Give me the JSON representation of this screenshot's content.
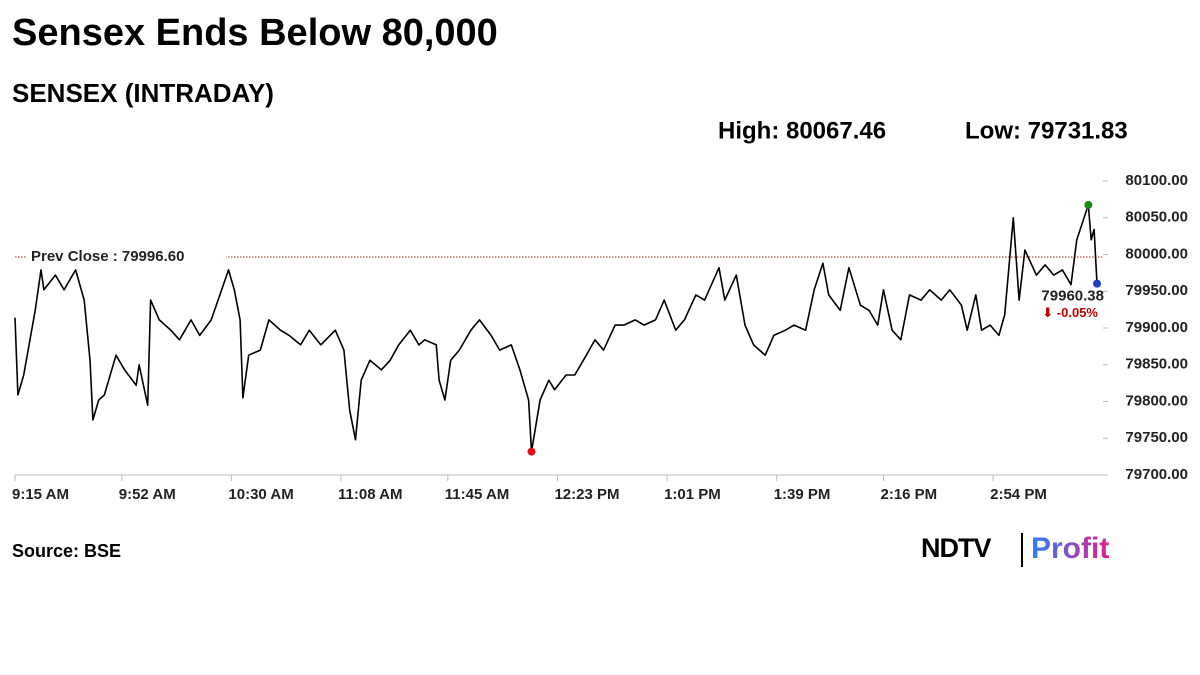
{
  "chart_data": {
    "type": "line",
    "title": "Sensex Ends Below 80,000",
    "subtitle": "SENSEX (INTRADAY)",
    "high": {
      "value": 80067.46,
      "label": "High: 80067.46",
      "color": "#1a8a1a"
    },
    "low": {
      "value": 79731.83,
      "label": "Low: 79731.83",
      "color": "#e01010"
    },
    "prev_close": {
      "value": 79996.6,
      "label": "Prev Close : 79996.60",
      "color": "#b22222"
    },
    "last": {
      "value": 79960.38,
      "color": "#1f3fbf"
    },
    "change": {
      "value": -0.05,
      "label": "⬇ -0.05%",
      "color": "#c00000"
    },
    "source": "Source: BSE",
    "logo": [
      "NDTV",
      "Profit"
    ],
    "color": "#000000",
    "x": [
      "9:15 AM",
      "9:16 AM",
      "9:18 AM",
      "9:22 AM",
      "9:24 AM",
      "9:25 AM",
      "9:29 AM",
      "9:32 AM",
      "9:36 AM",
      "9:39 AM",
      "9:41 AM",
      "9:42 AM",
      "9:44 AM",
      "9:46 AM",
      "9:50 AM",
      "9:53 AM",
      "9:57 AM",
      "9:58 AM",
      "10:01 AM",
      "10:02 AM",
      "10:05 AM",
      "10:09 AM",
      "10:12 AM",
      "10:16 AM",
      "10:19 AM",
      "10:23 AM",
      "10:26 AM",
      "10:29 AM",
      "10:31 AM",
      "10:33 AM",
      "10:34 AM",
      "10:36 AM",
      "10:40 AM",
      "10:43 AM",
      "10:47 AM",
      "10:50 AM",
      "10:54 AM",
      "10:57 AM",
      "11:01 AM",
      "11:06 AM",
      "11:09 AM",
      "11:11 AM",
      "11:13 AM",
      "11:15 AM",
      "11:18 AM",
      "11:22 AM",
      "11:25 AM",
      "11:28 AM",
      "11:32 AM",
      "11:35 AM",
      "11:37 AM",
      "11:41 AM",
      "11:42 AM",
      "11:44 AM",
      "11:46 AM",
      "11:49 AM",
      "11:53 AM",
      "11:56 AM",
      "12:00 PM",
      "12:03 PM",
      "12:07 PM",
      "12:10 PM",
      "12:13 PM",
      "12:14 PM",
      "12:17 PM",
      "12:20 PM",
      "12:22 PM",
      "12:26 PM",
      "12:29 PM",
      "12:33 PM",
      "12:36 PM",
      "12:39 PM",
      "12:43 PM",
      "12:46 PM",
      "12:50 PM",
      "12:53 PM",
      "12:57 PM",
      "1:00 PM",
      "1:04 PM",
      "1:07 PM",
      "1:11 PM",
      "1:14 PM",
      "1:19 PM",
      "1:21 PM",
      "1:25 PM",
      "1:28 PM",
      "1:31 PM",
      "1:35 PM",
      "1:38 PM",
      "1:42 PM",
      "1:45 PM",
      "1:49 PM",
      "1:52 PM",
      "1:55 PM",
      "1:57 PM",
      "2:01 PM",
      "2:04 PM",
      "2:08 PM",
      "2:11 PM",
      "2:14 PM",
      "2:16 PM",
      "2:19 PM",
      "2:22 PM",
      "2:25 PM",
      "2:29 PM",
      "2:32 PM",
      "2:36 PM",
      "2:39 PM",
      "2:43 PM",
      "2:45 PM",
      "2:48 PM",
      "2:50 PM",
      "2:53 PM",
      "2:56 PM",
      "2:58 PM",
      "3:01 PM",
      "3:03 PM",
      "3:05 PM",
      "3:09 PM",
      "3:12 PM",
      "3:15 PM",
      "3:18 PM",
      "3:21 PM",
      "3:23 PM",
      "3:27 PM",
      "3:28 PM",
      "3:29 PM",
      "3:30 PM"
    ],
    "values": [
      79914,
      79809,
      79836,
      79924,
      79979,
      79952,
      79972,
      79952,
      79979,
      79938,
      79856,
      79775,
      79802,
      79809,
      79863,
      79843,
      79822,
      79850,
      79795,
      79938,
      79911,
      79897,
      79884,
      79911,
      79890,
      79911,
      79945,
      79979,
      79952,
      79911,
      79805,
      79863,
      79870,
      79911,
      79897,
      79890,
      79877,
      79897,
      79877,
      79897,
      79870,
      79788,
      79748,
      79829,
      79856,
      79843,
      79856,
      79877,
      79897,
      79877,
      79884,
      79877,
      79829,
      79802,
      79856,
      79870,
      79897,
      79911,
      79890,
      79870,
      79877,
      79843,
      79802,
      79731.83,
      79802,
      79829,
      79816,
      79836,
      79836,
      79863,
      79884,
      79870,
      79904,
      79904,
      79911,
      79904,
      79911,
      79938,
      79897,
      79911,
      79945,
      79938,
      79982,
      79938,
      79972,
      79904,
      79877,
      79863,
      79890,
      79897,
      79904,
      79897,
      79952,
      79988,
      79945,
      79924,
      79982,
      79931,
      79924,
      79904,
      79952,
      79897,
      79884,
      79945,
      79938,
      79952,
      79938,
      79952,
      79931,
      79897,
      79945,
      79897,
      79904,
      79890,
      79918,
      80050,
      79938,
      80006,
      79972,
      79986,
      79972,
      79979,
      79959,
      80020,
      80067.46,
      80020,
      80034,
      79960.38
    ],
    "xlim": [
      "9:15 AM",
      "3:30 PM"
    ],
    "xticks": [
      "9:15 AM",
      "9:52 AM",
      "10:30 AM",
      "11:08 AM",
      "11:45 AM",
      "12:23 PM",
      "1:01 PM",
      "1:39 PM",
      "2:16 PM",
      "2:54 PM"
    ],
    "ylim": [
      79700,
      80100
    ],
    "yticks": [
      {
        "value": 79700,
        "label": "79700.00"
      },
      {
        "value": 79750,
        "label": "79750.00"
      },
      {
        "value": 79800,
        "label": "79800.00"
      },
      {
        "value": 79850,
        "label": "79850.00"
      },
      {
        "value": 79900,
        "label": "79900.00"
      },
      {
        "value": 79950,
        "label": "79950.00"
      },
      {
        "value": 80000,
        "label": "80000.00"
      },
      {
        "value": 80050,
        "label": "80050.00"
      },
      {
        "value": 80100,
        "label": "80100.00"
      }
    ],
    "grid": false
  }
}
